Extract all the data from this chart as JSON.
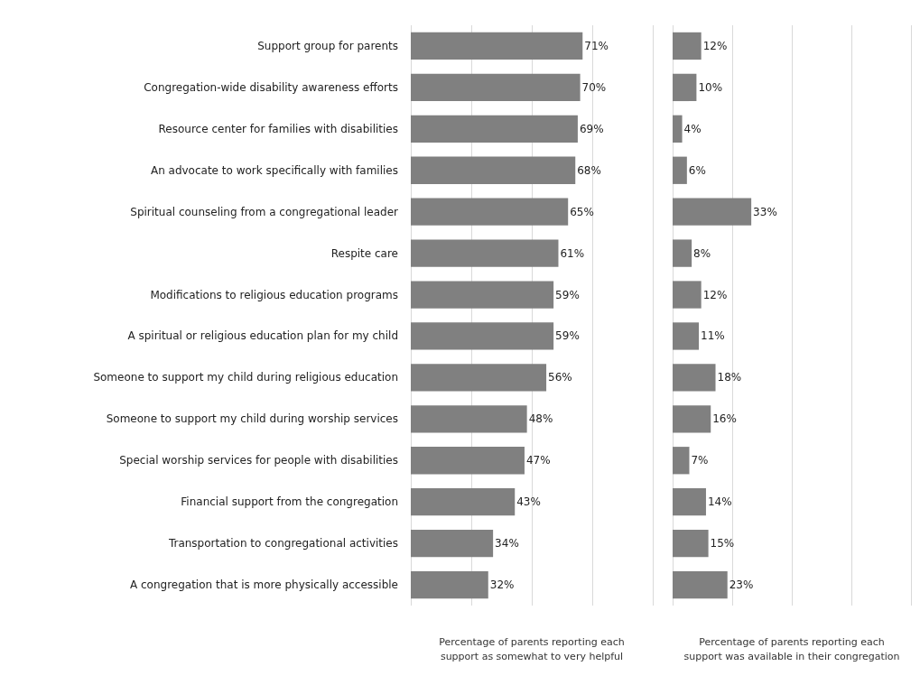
{
  "chart_data": [
    {
      "type": "bar",
      "orientation": "horizontal",
      "xlabel": "Percentage of parents reporting each\nsupport as somewhat to very helpful",
      "categories": [
        "Support group for parents",
        "Congregation-wide disability awareness efforts",
        "Resource center for families with disabilities",
        "An advocate to work specifically with families",
        "Spiritual counseling from a congregational leader",
        "Respite care",
        "Modifications to religious education programs",
        "A spiritual or religious education plan for my child",
        "Someone to support my child during religious education",
        "Someone to support my child during worship services",
        "Special worship services for people with disabilities",
        "Financial support from the congregation",
        "Transportation to congregational activities",
        "A congregation that is more physically accessible"
      ],
      "values": [
        71,
        70,
        69,
        68,
        65,
        61,
        59,
        59,
        56,
        48,
        47,
        43,
        34,
        32
      ],
      "value_labels": [
        "71%",
        "70%",
        "69%",
        "68%",
        "65%",
        "61%",
        "59%",
        "59%",
        "56%",
        "48%",
        "47%",
        "43%",
        "34%",
        "32%"
      ],
      "color": "#808080",
      "xlim": [
        0,
        100
      ],
      "xticks": [
        {
          "value": 0,
          "label": null
        },
        {
          "value": 25,
          "label": null
        },
        {
          "value": 50,
          "label": null
        },
        {
          "value": 75,
          "label": null
        },
        {
          "value": 100,
          "label": null
        }
      ],
      "grid": "x",
      "tick_labels": "y"
    },
    {
      "type": "bar",
      "orientation": "horizontal",
      "xlabel": "Percentage of parents reporting each\nsupport was available in their congregation",
      "categories": [
        null,
        null,
        null,
        null,
        null,
        null,
        null,
        null,
        null,
        null,
        null,
        null,
        null,
        null
      ],
      "values": [
        12,
        10,
        4,
        6,
        33,
        8,
        12,
        11,
        18,
        16,
        7,
        14,
        15,
        23
      ],
      "value_labels": [
        "12%",
        "10%",
        "4%",
        "6%",
        "33%",
        "8%",
        "12%",
        "11%",
        "18%",
        "16%",
        "7%",
        "14%",
        "15%",
        "23%"
      ],
      "color": "#808080",
      "xlim": [
        0,
        100
      ],
      "xticks": [
        {
          "value": 0,
          "label": null
        },
        {
          "value": 25,
          "label": null
        },
        {
          "value": 50,
          "label": null
        },
        {
          "value": 75,
          "label": null
        },
        {
          "value": 100,
          "label": null
        }
      ],
      "grid": "x",
      "tick_labels": false
    }
  ]
}
